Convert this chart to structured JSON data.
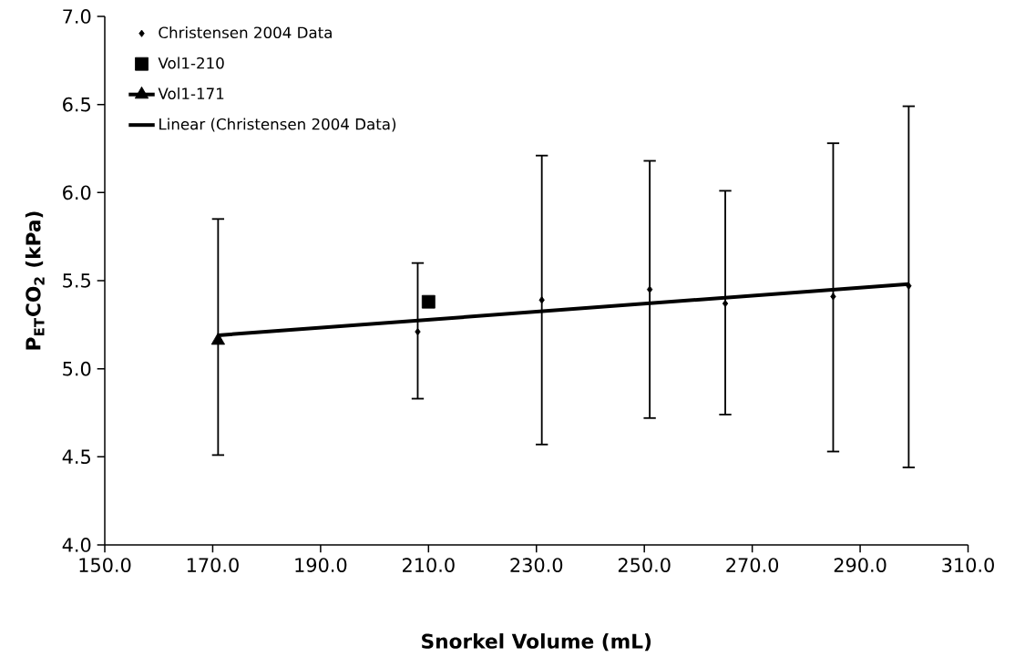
{
  "chart_data": {
    "type": "scatter",
    "xlabel": "Snorkel Volume (mL)",
    "ylabel": "P$_{ET}$CO$_{2}$ (kPa)",
    "xlim": [
      150,
      310
    ],
    "xticks": [
      {
        "value": 150,
        "label": "150.0"
      },
      {
        "value": 170,
        "label": "170.0"
      },
      {
        "value": 190,
        "label": "190.0"
      },
      {
        "value": 210,
        "label": "210.0"
      },
      {
        "value": 230,
        "label": "230.0"
      },
      {
        "value": 250,
        "label": "250.0"
      },
      {
        "value": 270,
        "label": "270.0"
      },
      {
        "value": 290,
        "label": "290.0"
      },
      {
        "value": 310,
        "label": "310.0"
      }
    ],
    "ylim": [
      4,
      7
    ],
    "yticks": [
      {
        "value": 4,
        "label": "4.0"
      },
      {
        "value": 4.5,
        "label": "4.5"
      },
      {
        "value": 5,
        "label": "5.0"
      },
      {
        "value": 5.5,
        "label": "5.5"
      },
      {
        "value": 6,
        "label": "6.0"
      },
      {
        "value": 6.5,
        "label": "6.5"
      },
      {
        "value": 7,
        "label": "7.0"
      }
    ],
    "legend": "top left",
    "series": [
      {
        "name": "Christensen 2004 Data",
        "color": "#000000",
        "marker": "diamond",
        "x": [
          208,
          231,
          251,
          265,
          285,
          299
        ],
        "values": [
          5.21,
          5.39,
          5.45,
          5.37,
          5.41,
          5.47
        ],
        "errors": [
          [
            4.83,
            5.6
          ],
          [
            4.57,
            6.21
          ],
          [
            4.72,
            6.18
          ],
          [
            4.74,
            6.01
          ],
          [
            4.53,
            6.28
          ],
          [
            4.44,
            6.49
          ]
        ]
      },
      {
        "name": "Vol1-210",
        "color": "#000000",
        "marker": "square",
        "x": [
          210
        ],
        "values": [
          5.38
        ]
      },
      {
        "name": "Vol1-171",
        "type": "line",
        "color": "#000000",
        "marker": "triangle",
        "x": [
          171
        ],
        "values": [
          5.16
        ],
        "errors": [
          [
            4.51,
            5.85
          ]
        ]
      },
      {
        "name": "Linear (Christensen 2004 Data)",
        "type": "line",
        "color": "#000000",
        "marker": "none",
        "x": [
          171,
          299
        ],
        "values": [
          5.19,
          5.48
        ]
      }
    ]
  }
}
